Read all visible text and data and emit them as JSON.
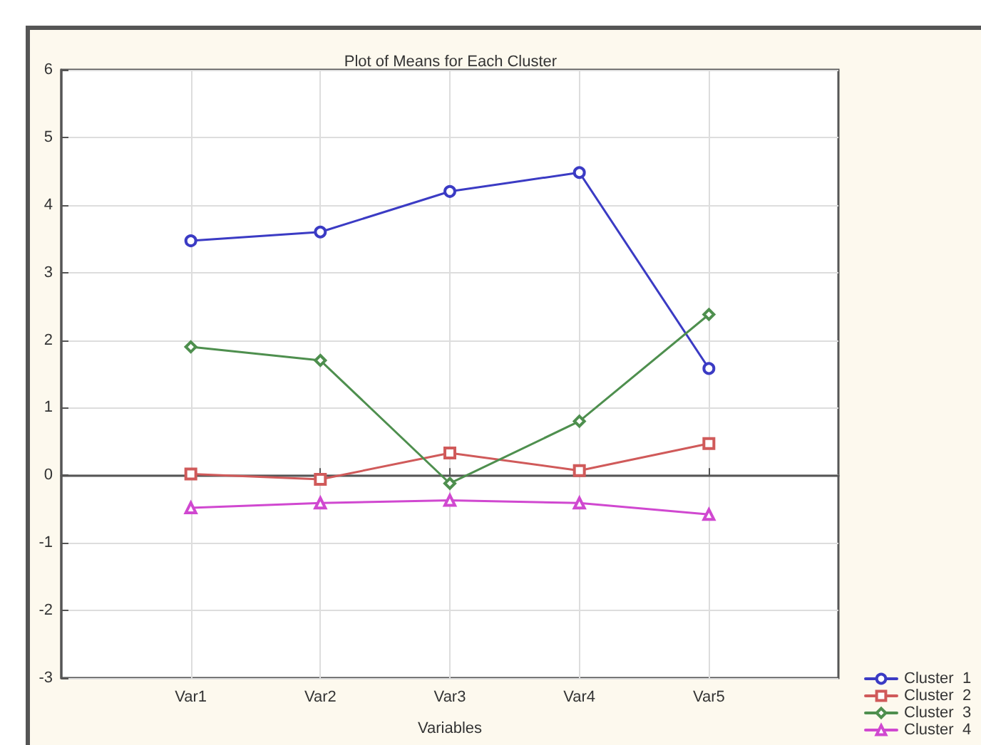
{
  "chart_data": {
    "type": "line",
    "title": "Plot of Means for Each Cluster",
    "xlabel": "Variables",
    "categories": [
      "Var1",
      "Var2",
      "Var3",
      "Var4",
      "Var5"
    ],
    "series": [
      {
        "name": "Cluster  1",
        "color": "#3b3bc4",
        "marker": "circle",
        "values": [
          3.47,
          3.6,
          4.2,
          4.48,
          1.58
        ]
      },
      {
        "name": "Cluster  2",
        "color": "#d05a5a",
        "marker": "square",
        "values": [
          0.02,
          -0.06,
          0.33,
          0.07,
          0.47
        ]
      },
      {
        "name": "Cluster  3",
        "color": "#4e8f4e",
        "marker": "diamond",
        "values": [
          1.9,
          1.7,
          -0.12,
          0.8,
          2.38
        ]
      },
      {
        "name": "Cluster  4",
        "color": "#d048d0",
        "marker": "triangle",
        "values": [
          -0.48,
          -0.41,
          -0.37,
          -0.41,
          -0.58
        ]
      }
    ],
    "ylim": [
      -3,
      6
    ],
    "yticks": [
      -3,
      -2,
      -1,
      0,
      1,
      2,
      3,
      4,
      5,
      6
    ],
    "grid": true,
    "legend": "bottom right",
    "line_style": "solid"
  }
}
